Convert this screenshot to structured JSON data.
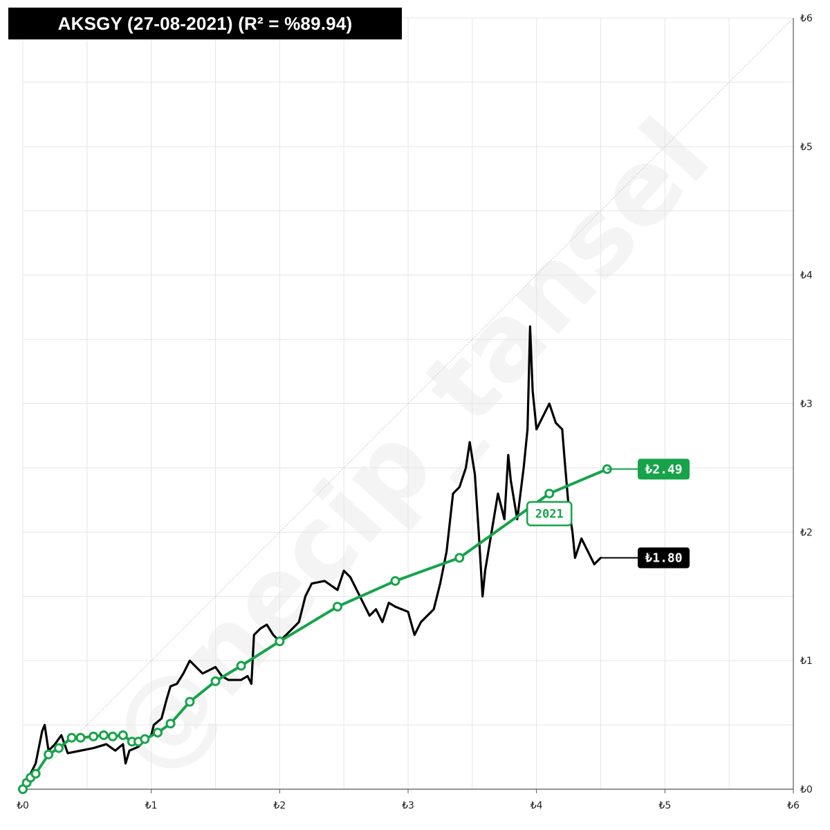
{
  "title": "AKSGY (27-08-2021) (R² = %89.94)",
  "watermark": "@necip_tansel",
  "colors": {
    "price_line": "#000000",
    "trend_line": "#16a34a",
    "grid": "#e5e5e5",
    "diagonal": "#c8c8c8"
  },
  "chart_data": {
    "type": "line",
    "title": "AKSGY (27-08-2021) (R² = %89.94)",
    "xlabel": "",
    "ylabel": "",
    "xlim": [
      0,
      6
    ],
    "ylim": [
      0,
      6
    ],
    "x_ticks": [
      "₺0",
      "₺1",
      "₺2",
      "₺3",
      "₺4",
      "₺5",
      "₺6"
    ],
    "y_ticks": [
      "₺0",
      "₺1",
      "₺2",
      "₺3",
      "₺4",
      "₺5",
      "₺6"
    ],
    "grid": true,
    "diagonal_reference": true,
    "series": [
      {
        "color": "#000000",
        "end_label": "₺1.80",
        "points": [
          [
            0,
            0
          ],
          [
            0.05,
            0.1
          ],
          [
            0.1,
            0.2
          ],
          [
            0.13,
            0.35
          ],
          [
            0.15,
            0.45
          ],
          [
            0.17,
            0.5
          ],
          [
            0.2,
            0.3
          ],
          [
            0.25,
            0.35
          ],
          [
            0.3,
            0.42
          ],
          [
            0.35,
            0.28
          ],
          [
            0.45,
            0.3
          ],
          [
            0.55,
            0.32
          ],
          [
            0.65,
            0.35
          ],
          [
            0.72,
            0.3
          ],
          [
            0.78,
            0.35
          ],
          [
            0.8,
            0.2
          ],
          [
            0.83,
            0.3
          ],
          [
            0.9,
            0.33
          ],
          [
            0.95,
            0.38
          ],
          [
            1.0,
            0.42
          ],
          [
            1.02,
            0.5
          ],
          [
            1.08,
            0.55
          ],
          [
            1.12,
            0.7
          ],
          [
            1.15,
            0.8
          ],
          [
            1.2,
            0.82
          ],
          [
            1.25,
            0.9
          ],
          [
            1.3,
            1.0
          ],
          [
            1.35,
            0.95
          ],
          [
            1.4,
            0.9
          ],
          [
            1.5,
            0.95
          ],
          [
            1.55,
            0.88
          ],
          [
            1.6,
            0.85
          ],
          [
            1.7,
            0.85
          ],
          [
            1.75,
            0.88
          ],
          [
            1.78,
            0.82
          ],
          [
            1.8,
            1.2
          ],
          [
            1.85,
            1.25
          ],
          [
            1.9,
            1.28
          ],
          [
            1.95,
            1.2
          ],
          [
            2.0,
            1.15
          ],
          [
            2.05,
            1.2
          ],
          [
            2.1,
            1.25
          ],
          [
            2.15,
            1.3
          ],
          [
            2.2,
            1.5
          ],
          [
            2.25,
            1.6
          ],
          [
            2.35,
            1.62
          ],
          [
            2.45,
            1.55
          ],
          [
            2.5,
            1.7
          ],
          [
            2.55,
            1.65
          ],
          [
            2.6,
            1.55
          ],
          [
            2.65,
            1.45
          ],
          [
            2.7,
            1.35
          ],
          [
            2.75,
            1.4
          ],
          [
            2.8,
            1.3
          ],
          [
            2.85,
            1.45
          ],
          [
            2.9,
            1.42
          ],
          [
            3.0,
            1.38
          ],
          [
            3.05,
            1.2
          ],
          [
            3.1,
            1.3
          ],
          [
            3.2,
            1.4
          ],
          [
            3.25,
            1.6
          ],
          [
            3.3,
            1.85
          ],
          [
            3.35,
            2.3
          ],
          [
            3.4,
            2.35
          ],
          [
            3.45,
            2.5
          ],
          [
            3.48,
            2.7
          ],
          [
            3.52,
            2.45
          ],
          [
            3.55,
            2.0
          ],
          [
            3.58,
            1.5
          ],
          [
            3.6,
            1.7
          ],
          [
            3.65,
            2.0
          ],
          [
            3.7,
            2.3
          ],
          [
            3.75,
            2.1
          ],
          [
            3.78,
            2.6
          ],
          [
            3.8,
            2.4
          ],
          [
            3.85,
            2.1
          ],
          [
            3.9,
            2.5
          ],
          [
            3.93,
            2.8
          ],
          [
            3.95,
            3.6
          ],
          [
            3.97,
            3.1
          ],
          [
            4.0,
            2.8
          ],
          [
            4.05,
            2.9
          ],
          [
            4.1,
            3.0
          ],
          [
            4.15,
            2.85
          ],
          [
            4.2,
            2.8
          ],
          [
            4.22,
            2.55
          ],
          [
            4.25,
            2.2
          ],
          [
            4.28,
            2.0
          ],
          [
            4.3,
            1.8
          ],
          [
            4.35,
            1.95
          ],
          [
            4.4,
            1.85
          ],
          [
            4.45,
            1.75
          ],
          [
            4.5,
            1.8
          ]
        ]
      },
      {
        "color": "#16a34a",
        "end_label": "₺2.49",
        "markers": [
          [
            0,
            0
          ],
          [
            0.03,
            0.05
          ],
          [
            0.06,
            0.09
          ],
          [
            0.1,
            0.12
          ],
          [
            0.2,
            0.27
          ],
          [
            0.28,
            0.32
          ],
          [
            0.38,
            0.4
          ],
          [
            0.45,
            0.4
          ],
          [
            0.55,
            0.41
          ],
          [
            0.63,
            0.42
          ],
          [
            0.7,
            0.41
          ],
          [
            0.78,
            0.42
          ],
          [
            0.85,
            0.37
          ],
          [
            0.9,
            0.37
          ],
          [
            0.95,
            0.39
          ],
          [
            1.05,
            0.44
          ],
          [
            1.15,
            0.51
          ],
          [
            1.3,
            0.68
          ],
          [
            1.5,
            0.84
          ],
          [
            1.7,
            0.96
          ],
          [
            2.0,
            1.15
          ],
          [
            2.45,
            1.42
          ],
          [
            2.9,
            1.62
          ],
          [
            3.4,
            1.8
          ],
          [
            4.1,
            2.3
          ],
          [
            4.55,
            2.49
          ]
        ]
      }
    ],
    "annotations": [
      {
        "text": "2021",
        "x": 4.1,
        "y": 2.3
      }
    ]
  }
}
